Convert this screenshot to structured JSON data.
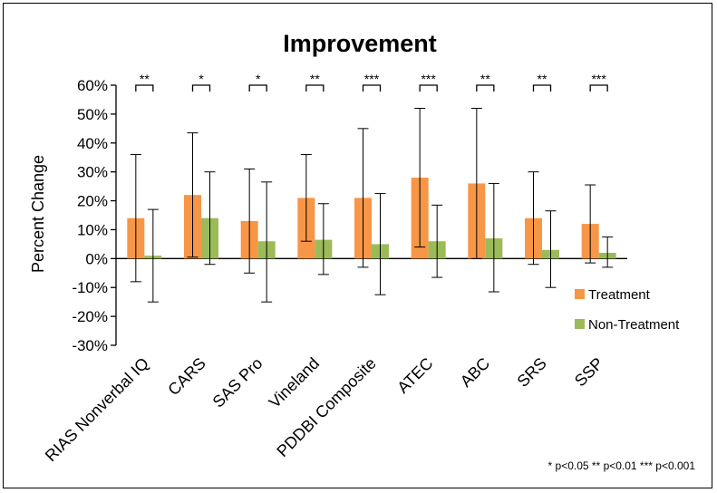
{
  "chart_data": {
    "type": "bar",
    "title": "Improvement",
    "ylabel": "Percent Change",
    "xlabel": "",
    "ylim": [
      -30,
      60
    ],
    "yticks": [
      -30,
      -20,
      -10,
      0,
      10,
      20,
      30,
      40,
      50,
      60
    ],
    "ytick_labels": [
      "-30%",
      "-20%",
      "-10%",
      "0%",
      "10%",
      "20%",
      "30%",
      "40%",
      "50%",
      "60%"
    ],
    "grid": false,
    "legend_position": "right",
    "categories": [
      "RIAS Nonverbal IQ",
      "CARS",
      "SAS Pro",
      "Vineland",
      "PDDBI Composite",
      "ATEC",
      "ABC",
      "SRS",
      "SSP"
    ],
    "significance": [
      "**",
      "*",
      "*",
      "**",
      "***",
      "***",
      "**",
      "**",
      "***"
    ],
    "series": [
      {
        "name": "Treatment",
        "color": "#F79646",
        "values": [
          14,
          22,
          13,
          21,
          21,
          28,
          26,
          14,
          12
        ],
        "error_low": [
          -8,
          0.5,
          -5,
          6,
          -3,
          4,
          0,
          -2,
          -1.5
        ],
        "error_high": [
          36,
          43.5,
          31,
          36,
          45,
          52,
          52,
          30,
          25.5
        ]
      },
      {
        "name": "Non-Treatment",
        "color": "#9BBB59",
        "values": [
          1,
          14,
          6,
          6.5,
          5,
          6,
          7,
          3,
          2
        ],
        "error_low": [
          -15,
          -2,
          -15,
          -5.5,
          -12.5,
          -6.5,
          -11.5,
          -10,
          -3
        ],
        "error_high": [
          17,
          30,
          26.5,
          19,
          22.5,
          18.5,
          26,
          16.5,
          7.5
        ]
      }
    ],
    "footnote": "* p<0.05 ** p<0.01 *** p<0.001"
  }
}
